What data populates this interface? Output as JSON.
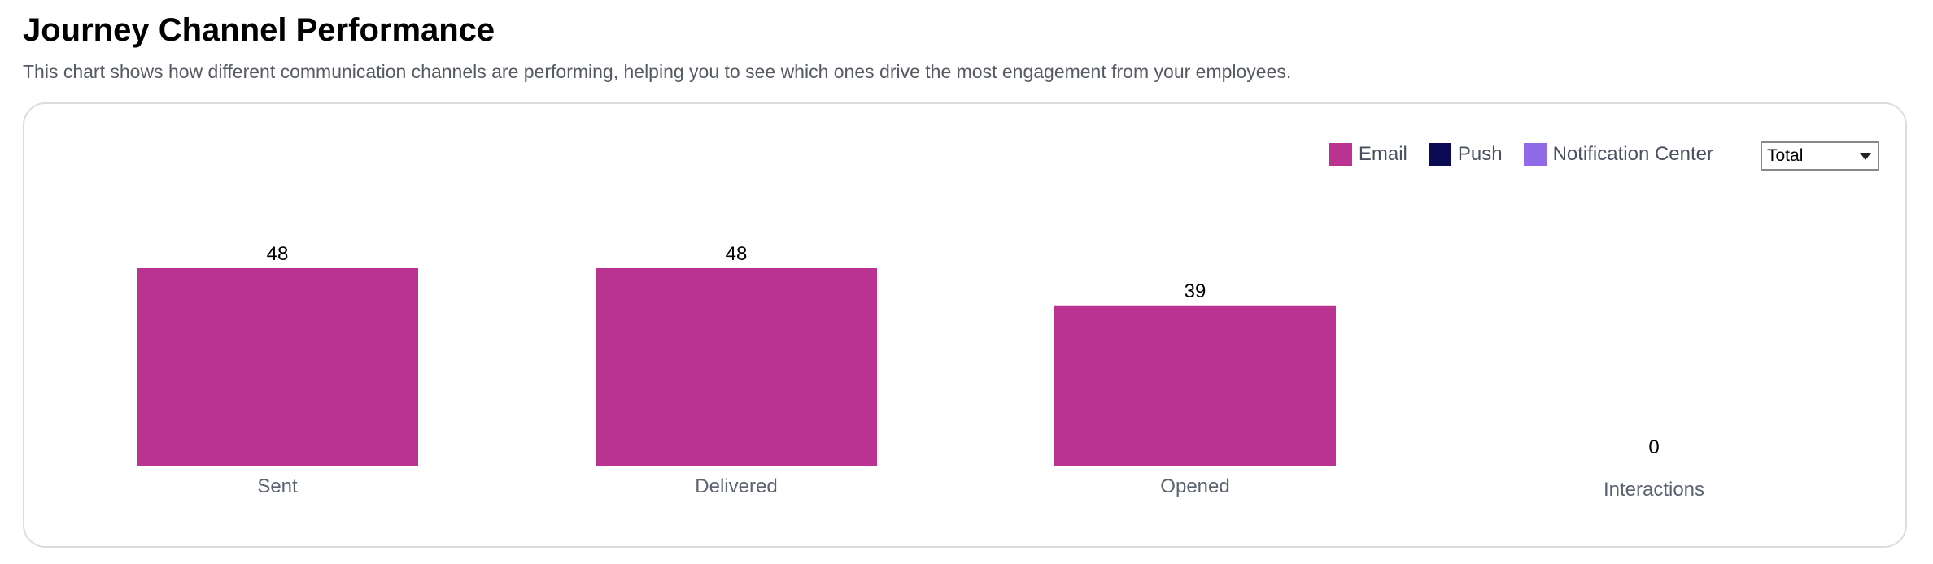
{
  "header": {
    "title": "Journey Channel Performance",
    "subtitle": "This chart shows how different communication channels are performing, helping you to see which ones drive the most engagement from your employees."
  },
  "filter": {
    "selected": "Total"
  },
  "legend": [
    {
      "label": "Email",
      "color": "#bb3390"
    },
    {
      "label": "Push",
      "color": "#0b0a55"
    },
    {
      "label": "Notification Center",
      "color": "#8f6be8"
    }
  ],
  "chart_data": {
    "type": "bar",
    "title": "Journey Channel Performance",
    "categories": [
      "Sent",
      "Delivered",
      "Opened",
      "Interactions"
    ],
    "series": [
      {
        "name": "Email",
        "color": "#bb3390",
        "values": [
          48,
          48,
          39,
          0
        ]
      }
    ],
    "data_labels": [
      "48",
      "48",
      "39",
      "0"
    ],
    "legend_position": "top-right",
    "grid": false,
    "ylim": [
      0,
      48
    ]
  }
}
